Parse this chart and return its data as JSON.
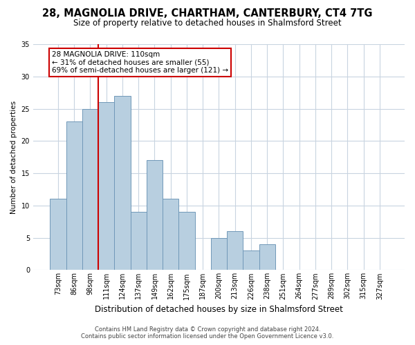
{
  "title": "28, MAGNOLIA DRIVE, CHARTHAM, CANTERBURY, CT4 7TG",
  "subtitle": "Size of property relative to detached houses in Shalmsford Street",
  "xlabel": "Distribution of detached houses by size in Shalmsford Street",
  "ylabel": "Number of detached properties",
  "bin_labels": [
    "73sqm",
    "86sqm",
    "98sqm",
    "111sqm",
    "124sqm",
    "137sqm",
    "149sqm",
    "162sqm",
    "175sqm",
    "187sqm",
    "200sqm",
    "213sqm",
    "226sqm",
    "238sqm",
    "251sqm",
    "264sqm",
    "277sqm",
    "289sqm",
    "302sqm",
    "315sqm",
    "327sqm"
  ],
  "bar_values": [
    11,
    23,
    25,
    26,
    27,
    9,
    17,
    11,
    9,
    0,
    5,
    6,
    3,
    4,
    0,
    0,
    0,
    0,
    0,
    0,
    0
  ],
  "bar_color": "#b8cfe0",
  "bar_edge_color": "#7098b8",
  "vline_color": "#cc0000",
  "vline_bin_index": 3,
  "annotation_text": "28 MAGNOLIA DRIVE: 110sqm\n← 31% of detached houses are smaller (55)\n69% of semi-detached houses are larger (121) →",
  "annotation_box_color": "#ffffff",
  "annotation_box_edge": "#cc0000",
  "ylim": [
    0,
    35
  ],
  "yticks": [
    0,
    5,
    10,
    15,
    20,
    25,
    30,
    35
  ],
  "footer1": "Contains HM Land Registry data © Crown copyright and database right 2024.",
  "footer2": "Contains public sector information licensed under the Open Government Licence v3.0.",
  "fig_bg_color": "#ffffff",
  "plot_bg_color": "#ffffff",
  "grid_color": "#c8d4e0",
  "title_fontsize": 10.5,
  "subtitle_fontsize": 8.5,
  "xlabel_fontsize": 8.5,
  "ylabel_fontsize": 7.5,
  "tick_fontsize": 7,
  "annotation_fontsize": 7.5,
  "footer_fontsize": 6
}
